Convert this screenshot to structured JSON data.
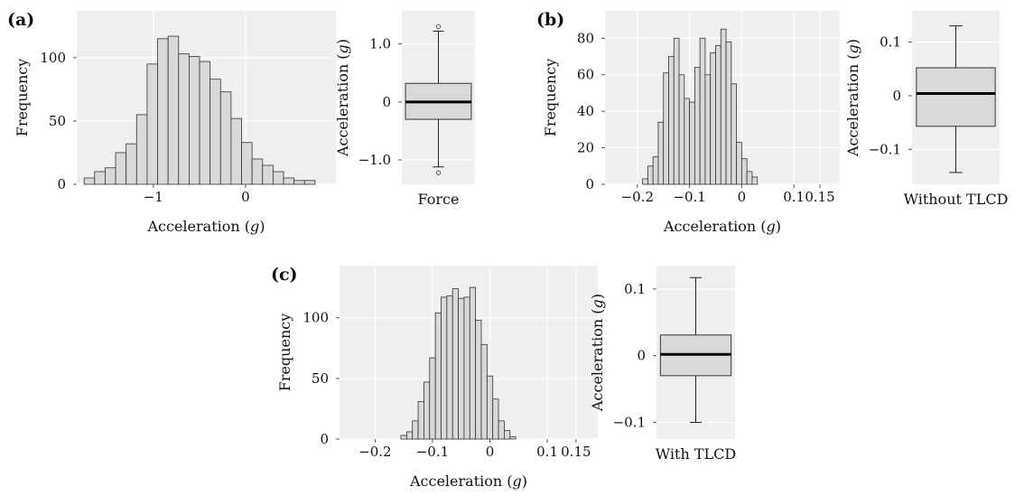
{
  "figure_style": {
    "plot_bg": "#efefef",
    "bar_fill": "#d9d9d9",
    "bar_stroke": "#333333",
    "median_color": "#000000",
    "grid_color": "#ffffff"
  },
  "chart_data": [
    {
      "id": "a-hist",
      "panel_label": "(a)",
      "type": "bar",
      "subtype": "histogram",
      "xlabel": "Acceleration (g)",
      "ylabel": "Frequency",
      "xlim": [
        -1.83,
        0.98
      ],
      "ylim": [
        0,
        137
      ],
      "xticks": [
        -1,
        0
      ],
      "xtick_labels": [
        "−1",
        "0"
      ],
      "yticks": [
        0,
        50,
        100
      ],
      "ytick_labels": [
        "0",
        "50",
        "100"
      ],
      "bin_start": -1.75,
      "bin_width": 0.1138,
      "values": [
        5,
        10,
        13,
        25,
        32,
        55,
        95,
        115,
        117,
        103,
        101,
        97,
        83,
        73,
        52,
        33,
        20,
        15,
        10,
        5,
        3,
        3
      ],
      "grid": true
    },
    {
      "id": "a-box",
      "type": "box",
      "category_label": "Force",
      "ylabel": "Acceleration (g)",
      "ylim": [
        -1.42,
        1.57
      ],
      "yticks": [
        -1,
        0,
        1
      ],
      "ytick_labels": [
        "−1.0",
        "0",
        "1.0"
      ],
      "box": {
        "whisker_low": -1.12,
        "q1": -0.3,
        "median": 0.0,
        "q3": 0.32,
        "whisker_high": 1.22
      },
      "outliers": [
        1.3,
        -1.22
      ],
      "grid": true
    },
    {
      "id": "b-hist",
      "panel_label": "(b)",
      "type": "bar",
      "subtype": "histogram",
      "xlabel": "Acceleration (g)",
      "ylabel": "Frequency",
      "xlim": [
        -0.262,
        0.188
      ],
      "ylim": [
        0,
        95
      ],
      "xticks": [
        -0.2,
        -0.1,
        0,
        0.1,
        0.15
      ],
      "xtick_labels": [
        "−0.2",
        "−0.1",
        "0",
        "0.1",
        "0.15"
      ],
      "yticks": [
        0,
        20,
        40,
        60,
        80
      ],
      "ytick_labels": [
        "0",
        "20",
        "40",
        "60",
        "80"
      ],
      "bin_start": -0.19,
      "bin_width": 0.01,
      "values": [
        3,
        10,
        15,
        34,
        61,
        70,
        80,
        60,
        47,
        45,
        64,
        80,
        60,
        72,
        76,
        85,
        78,
        55,
        23,
        14,
        7,
        4
      ],
      "grid": true
    },
    {
      "id": "b-box",
      "type": "box",
      "category_label": "Without TLCD",
      "ylabel": "Acceleration (g)",
      "ylim": [
        -0.165,
        0.158
      ],
      "yticks": [
        -0.1,
        0,
        0.1
      ],
      "ytick_labels": [
        "−0.1",
        "0",
        "0.1"
      ],
      "box": {
        "whisker_low": -0.143,
        "q1": -0.057,
        "median": 0.004,
        "q3": 0.052,
        "whisker_high": 0.13
      },
      "outliers": [],
      "grid": true
    },
    {
      "id": "c-hist",
      "panel_label": "(c)",
      "type": "bar",
      "subtype": "histogram",
      "xlabel": "Acceleration (g)",
      "ylabel": "Frequency",
      "xlim": [
        -0.262,
        0.188
      ],
      "ylim": [
        0,
        143
      ],
      "xticks": [
        -0.2,
        -0.1,
        0,
        0.1,
        0.15
      ],
      "xtick_labels": [
        "−0.2",
        "−0.1",
        "0",
        "0.1",
        "0.15"
      ],
      "yticks": [
        0,
        50,
        100
      ],
      "ytick_labels": [
        "0",
        "50",
        "100"
      ],
      "bin_start": -0.155,
      "bin_width": 0.01,
      "values": [
        3,
        6,
        15,
        31,
        47,
        67,
        104,
        117,
        118,
        124,
        116,
        117,
        125,
        98,
        78,
        52,
        33,
        15,
        7,
        2
      ],
      "grid": true
    },
    {
      "id": "c-box",
      "type": "box",
      "category_label": "With TLCD",
      "ylabel": "Acceleration (g)",
      "ylim": [
        -0.125,
        0.135
      ],
      "yticks": [
        -0.1,
        0,
        0.1
      ],
      "ytick_labels": [
        "−0.1",
        "0",
        "0.1"
      ],
      "box": {
        "whisker_low": -0.1,
        "q1": -0.03,
        "median": 0.002,
        "q3": 0.031,
        "whisker_high": 0.117
      },
      "outliers": [],
      "grid": true
    }
  ]
}
